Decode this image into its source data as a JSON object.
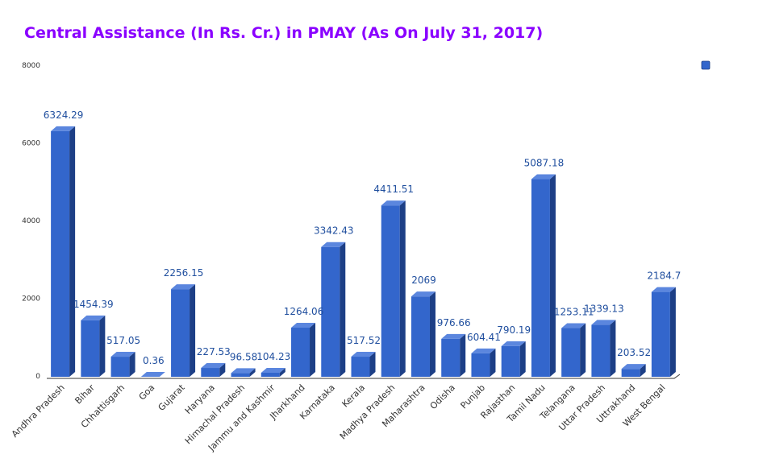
{
  "chart_data": {
    "type": "bar",
    "title": "Central Assistance (In Rs. Cr.) in PMAY (As On July 31, 2017)",
    "xlabel": "",
    "ylabel": "",
    "ylim": [
      0,
      8000
    ],
    "yticks": [
      0,
      2000,
      4000,
      6000,
      8000
    ],
    "legend_placement": "top-right",
    "grid": false,
    "bar_color": "#3366cc",
    "bar_side_color": "#1d3f86",
    "bar_top_color": "#5b86de",
    "label_color": "#1f4e9e",
    "title_color": "#8a00ff",
    "categories": [
      "Andhra Pradesh",
      "Bihar",
      "Chhattisgarh",
      "Goa",
      "Gujarat",
      "Haryana",
      "Himachal Pradesh",
      "Jammu and Kashmir",
      "Jharkhand",
      "Karnataka",
      "Kerala",
      "Madhya Pradesh",
      "Maharashtra",
      "Odisha",
      "Punjab",
      "Rajasthan",
      "Tamil Nadu",
      "Telangana",
      "Uttar Pradesh",
      "Uttrakhand",
      "West Bengal"
    ],
    "values": [
      6324.29,
      1454.39,
      517.05,
      0.36,
      2256.15,
      227.53,
      96.58,
      104.23,
      1264.06,
      3342.43,
      517.52,
      4411.51,
      2069,
      976.66,
      604.41,
      790.19,
      5087.18,
      1253.11,
      1339.13,
      203.52,
      2184.7
    ],
    "data_labels": [
      "6324.29",
      "1454.39",
      "517.05",
      "0.36",
      "2256.15",
      "227.53",
      "96.58",
      "104.23",
      "1264.06",
      "3342.43",
      "517.52",
      "4411.51",
      "2069",
      "976.66",
      "604.41",
      "790.19",
      "5087.18",
      "1253.11",
      "1339.13",
      "203.52",
      "2184.7"
    ]
  }
}
